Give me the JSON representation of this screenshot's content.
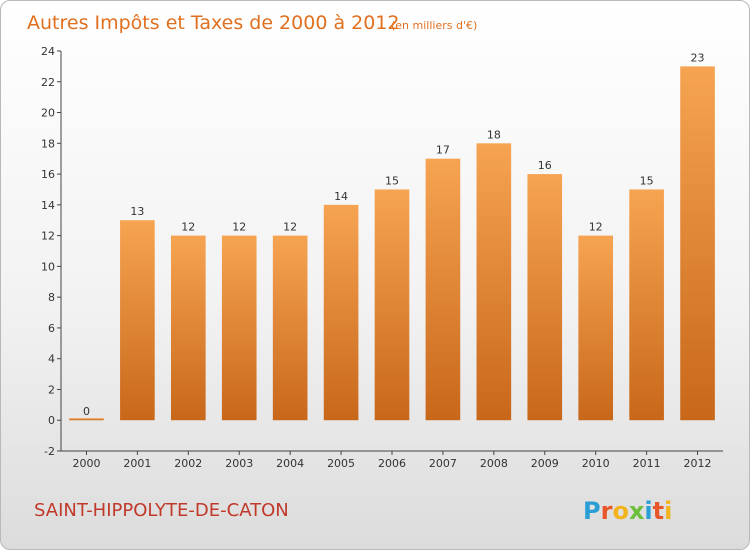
{
  "chart_data": {
    "type": "bar",
    "title": "Autres Impôts et Taxes de 2000 à 2012",
    "subtitle": "(en milliers d'€)",
    "categories": [
      "2000",
      "2001",
      "2002",
      "2003",
      "2004",
      "2005",
      "2006",
      "2007",
      "2008",
      "2009",
      "2010",
      "2011",
      "2012"
    ],
    "values": [
      0,
      13,
      12,
      12,
      12,
      14,
      15,
      17,
      18,
      16,
      12,
      15,
      23
    ],
    "data_labels": [
      "0",
      "13",
      "12",
      "12",
      "12",
      "14",
      "15",
      "17",
      "18",
      "16",
      "12",
      "15",
      "23"
    ],
    "ylim": [
      -2,
      24
    ],
    "yticks": [
      -2,
      0,
      2,
      4,
      6,
      8,
      10,
      12,
      14,
      16,
      18,
      20,
      22,
      24
    ],
    "grid": false,
    "legend": "none",
    "colors": {
      "bar_top": "#f6a452",
      "bar_bottom": "#c8671a",
      "axis": "#444444"
    }
  },
  "footer": {
    "commune": "SAINT-HIPPOLYTE-DE-CATON",
    "brand": "Proxiti",
    "brand_colors": [
      "#2a9fd6",
      "#e8572a",
      "#f2b31c",
      "#6cbf3a",
      "#2a9fd6",
      "#e8572a",
      "#f2b31c"
    ]
  }
}
